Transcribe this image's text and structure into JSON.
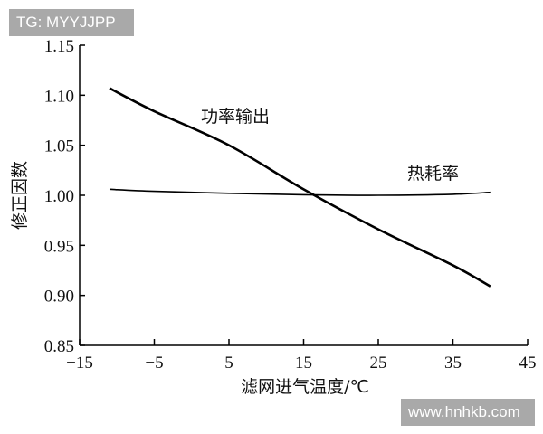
{
  "watermarks": {
    "top_left": "TG: MYYJJPP",
    "bottom_right": "www.hnhkb.com"
  },
  "chart_data": {
    "type": "line",
    "title": "",
    "xlabel": "滤网进气温度/℃",
    "ylabel": "修正因数",
    "xlim": [
      -15,
      45
    ],
    "ylim": [
      0.85,
      1.15
    ],
    "xticks": [
      "−15",
      "−5",
      "5",
      "15",
      "25",
      "35",
      "45"
    ],
    "xtick_values": [
      -15,
      -5,
      5,
      15,
      25,
      35,
      45
    ],
    "yticks": [
      "0.85",
      "0.90",
      "0.95",
      "1.00",
      "1.05",
      "1.10",
      "1.15"
    ],
    "ytick_values": [
      0.85,
      0.9,
      0.95,
      1.0,
      1.05,
      1.1,
      1.15
    ],
    "grid": false,
    "series": [
      {
        "name": "功率输出",
        "color": "#000000",
        "x": [
          -11,
          -5,
          5,
          15,
          25,
          35,
          40
        ],
        "y": [
          1.107,
          1.084,
          1.05,
          1.006,
          0.966,
          0.93,
          0.909
        ]
      },
      {
        "name": "热耗率",
        "color": "#000000",
        "x": [
          -11,
          -5,
          5,
          15,
          25,
          35,
          40
        ],
        "y": [
          1.006,
          1.004,
          1.002,
          1.0005,
          1.0,
          1.001,
          1.003
        ]
      }
    ]
  }
}
